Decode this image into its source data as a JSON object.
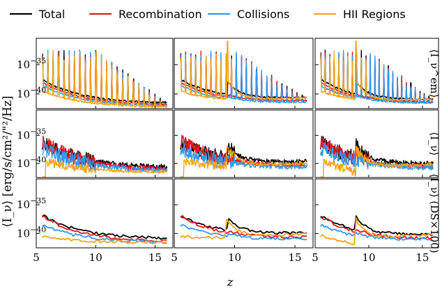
{
  "chart_data": {
    "type": "line",
    "ylabel": "⟨I_ν⟩ [erg/s/cm²/\"²/Hz]",
    "xlabel": "z",
    "xlim": [
      5,
      16.5
    ],
    "ylim_log10": [
      -42.5,
      -30.5
    ],
    "xticks": [
      5,
      10,
      15
    ],
    "yticks_log10": [
      -35,
      -40
    ],
    "xtick_labels": [
      "5",
      "10",
      "15"
    ],
    "ytick_labels": [
      "10^−35",
      "10^−40"
    ],
    "ytick_base": "10",
    "ytick_exps": [
      "−35",
      "−40"
    ],
    "series": [
      {
        "name": "Total",
        "color": "#000000"
      },
      {
        "name": "Recombination",
        "color": "#e8161b"
      },
      {
        "name": "Collisions",
        "color": "#3399ee"
      },
      {
        "name": "HII Regions",
        "color": "#f5a31a"
      }
    ],
    "rows": [
      {
        "label": "⟨I_ν^em⟩",
        "mode": "emission"
      },
      {
        "label": "⟨I_ν⟩",
        "mode": "observed"
      },
      {
        "label": "⟨I_ν⟩ (DS×100)",
        "mode": "smooth"
      }
    ],
    "columns": [
      {
        "id": "col1",
        "hii_bump_z": null,
        "floor_log10": {
          "total": -41.2,
          "rec": -41.6,
          "col": -41.9,
          "hii": -42.1
        }
      },
      {
        "id": "col2",
        "hii_bump_z": 9.4,
        "floor_log10": {
          "total": -40.3,
          "rec": -40.9,
          "col": -41.3,
          "hii": -40.5
        }
      },
      {
        "id": "col3",
        "hii_bump_z": 8.8,
        "floor_log10": {
          "total": -40.6,
          "rec": -41.1,
          "col": -41.4,
          "hii": -40.7
        }
      }
    ],
    "row_levels_log10": {
      "emission": {
        "start": {
          "total": -37.5,
          "rec": -38.0,
          "col": -38.5,
          "hii": -39.5
        },
        "end": {
          "total": -41.5,
          "rec": -41.8,
          "col": -42.0,
          "hii": -42.2
        },
        "spike_top": -32.5
      },
      "observed": {
        "start": {
          "total": -36.2,
          "rec": -36.0,
          "col": -37.2,
          "hii": -39.5
        },
        "end": {
          "total": -40.6,
          "rec": -41.0,
          "col": -41.2,
          "hii": -41.5
        },
        "spike_top": -34.5
      },
      "smooth": {
        "start": {
          "total": -36.8,
          "rec": -36.9,
          "col": -38.5,
          "hii": -40.5
        },
        "end": {
          "total": -40.8,
          "rec": -41.3,
          "col": -41.5,
          "hii": -41.6
        },
        "spike_top": -36.0
      }
    }
  }
}
